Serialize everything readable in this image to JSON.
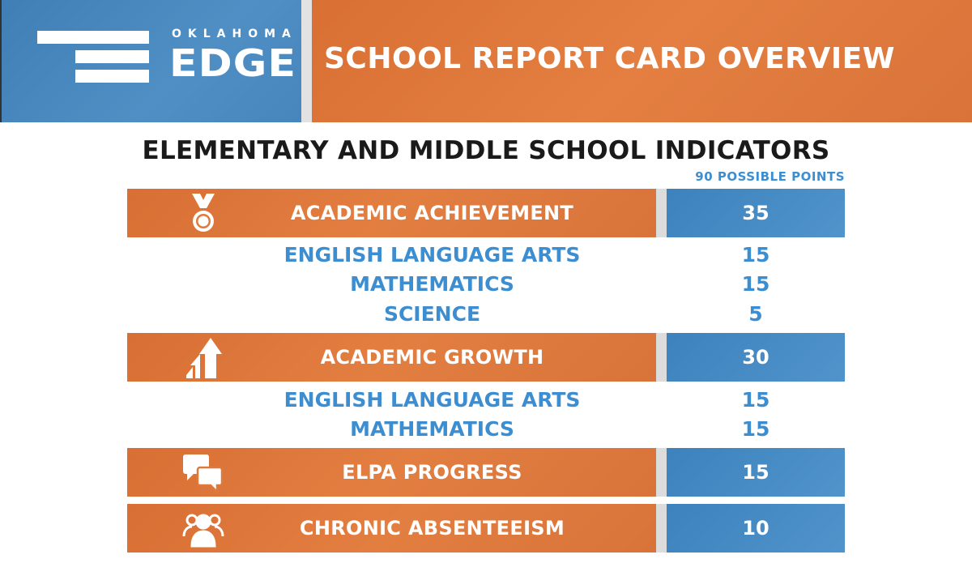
{
  "header": {
    "logo_top": "OKLAHOMA",
    "logo_main": "EDGE",
    "title": "SCHOOL REPORT CARD OVERVIEW"
  },
  "section": {
    "title": "ELEMENTARY AND MIDDLE SCHOOL INDICATORS",
    "possible_points": "90 POSSIBLE POINTS"
  },
  "indicators": [
    {
      "label": "ACADEMIC ACHIEVEMENT",
      "points": "35",
      "icon": "medal-icon",
      "subs": [
        {
          "label": "ENGLISH LANGUAGE ARTS",
          "points": "15"
        },
        {
          "label": "MATHEMATICS",
          "points": "15"
        },
        {
          "label": "SCIENCE",
          "points": "5"
        }
      ]
    },
    {
      "label": "ACADEMIC GROWTH",
      "points": "30",
      "icon": "growth-arrows-icon",
      "subs": [
        {
          "label": "ENGLISH LANGUAGE ARTS",
          "points": "15"
        },
        {
          "label": "MATHEMATICS",
          "points": "15"
        }
      ]
    },
    {
      "label": "ELPA PROGRESS",
      "points": "15",
      "icon": "speech-bubbles-icon",
      "subs": []
    },
    {
      "label": "CHRONIC ABSENTEEISM",
      "points": "10",
      "icon": "people-icon",
      "subs": []
    }
  ],
  "colors": {
    "orange": "#e07a3c",
    "blue": "#4a8dc6",
    "text_blue": "#3d8ed0"
  }
}
